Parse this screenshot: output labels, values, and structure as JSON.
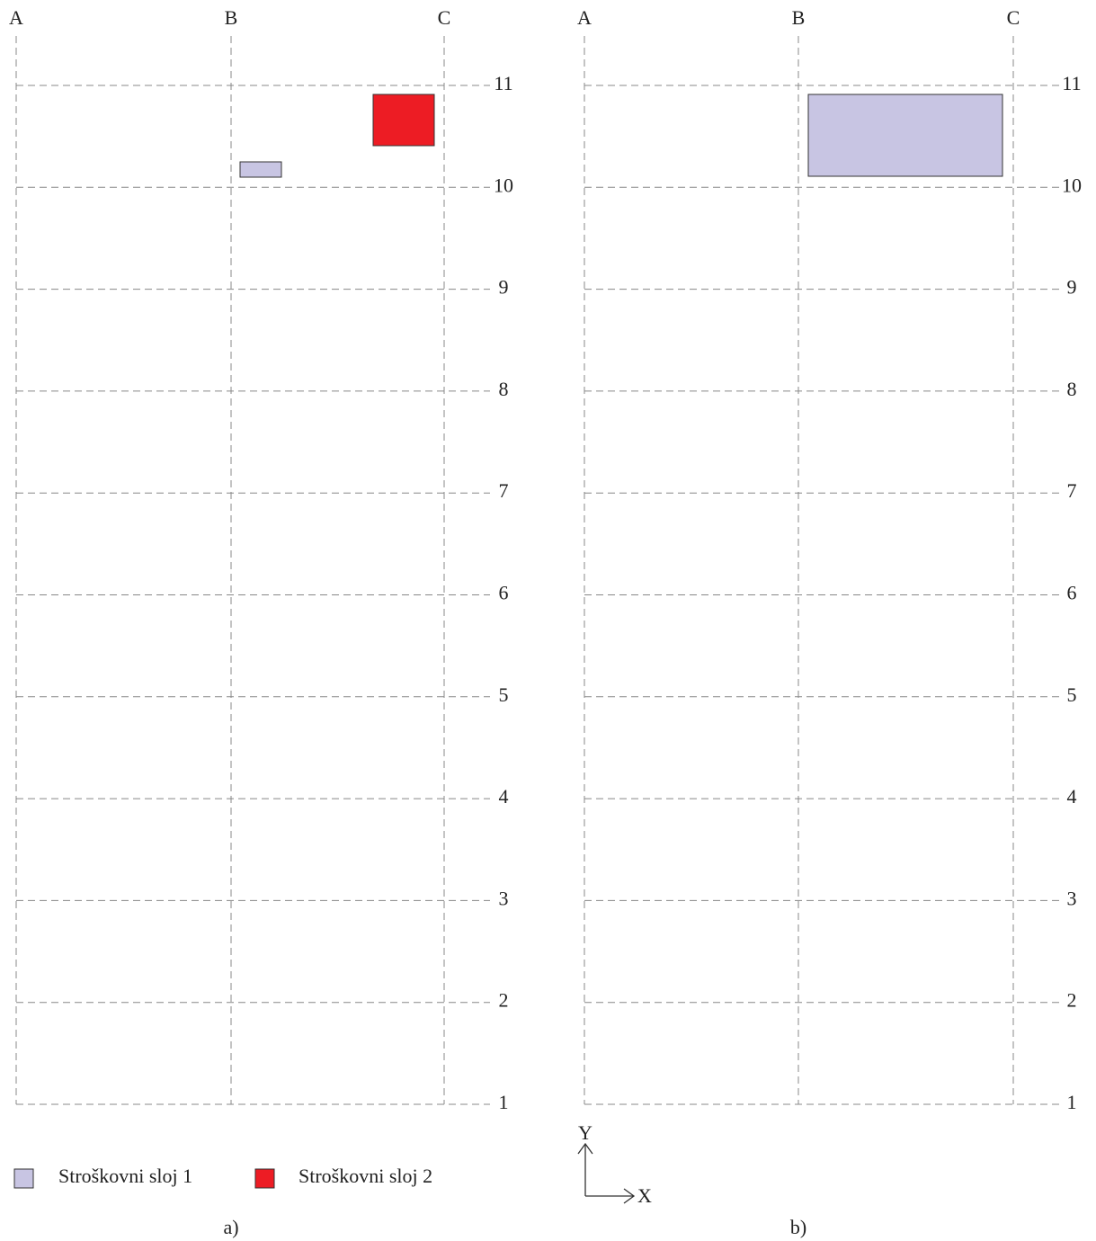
{
  "panels": [
    {
      "caption": "a)",
      "columns": [
        "A",
        "B",
        "C"
      ],
      "rows": [
        "1",
        "2",
        "3",
        "4",
        "5",
        "6",
        "7",
        "8",
        "9",
        "10",
        "11"
      ]
    },
    {
      "caption": "b)",
      "columns": [
        "A",
        "B",
        "C"
      ],
      "rows": [
        "1",
        "2",
        "3",
        "4",
        "5",
        "6",
        "7",
        "8",
        "9",
        "10",
        "11"
      ]
    }
  ],
  "legend": [
    {
      "label": "Stroškovni sloj 1"
    },
    {
      "label": "Stroškovni sloj 2"
    }
  ],
  "axes": {
    "y": "Y",
    "x": "X"
  }
}
